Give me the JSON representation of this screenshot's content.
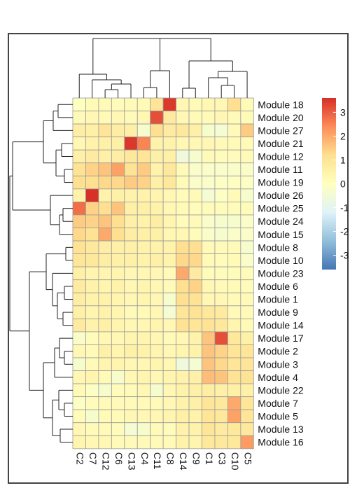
{
  "chart_data": {
    "type": "heatmap",
    "title": "",
    "xlabel": "",
    "ylabel": "",
    "columns": [
      "C2",
      "C7",
      "C12",
      "C6",
      "C13",
      "C4",
      "C11",
      "C8",
      "C14",
      "C9",
      "C1",
      "C3",
      "C10",
      "C5"
    ],
    "rows": [
      "Module 18",
      "Module 20",
      "Module 27",
      "Module 21",
      "Module 12",
      "Module 11",
      "Module 19",
      "Module 26",
      "Module 25",
      "Module 24",
      "Module 15",
      "Module 8",
      "Module 10",
      "Module 23",
      "Module 6",
      "Module 1",
      "Module 9",
      "Module 14",
      "Module 17",
      "Module 2",
      "Module 3",
      "Module 4",
      "Module 22",
      "Module 7",
      "Module 5",
      "Module 13",
      "Module 16"
    ],
    "values": [
      [
        0.0,
        0.2,
        0.2,
        0.1,
        0.2,
        0.2,
        1.0,
        3.5,
        0.3,
        0.2,
        0.3,
        0.3,
        1.2,
        0.2
      ],
      [
        0.2,
        0.3,
        0.2,
        0.3,
        0.2,
        0.3,
        3.2,
        0.8,
        0.3,
        0.2,
        0.2,
        0.3,
        0.2,
        0.2
      ],
      [
        0.7,
        0.6,
        1.0,
        0.7,
        0.6,
        -0.3,
        1.2,
        0.8,
        0.9,
        0.6,
        -0.3,
        -0.4,
        0.2,
        1.5
      ],
      [
        0.3,
        0.5,
        0.6,
        0.6,
        3.5,
        2.5,
        0.5,
        0.5,
        0.3,
        0.3,
        0.3,
        0.2,
        0.2,
        0.2
      ],
      [
        0.6,
        0.8,
        0.6,
        0.7,
        0.9,
        1.0,
        0.6,
        0.6,
        -0.6,
        -0.3,
        0.2,
        0.1,
        0.1,
        0.2
      ],
      [
        1.1,
        1.4,
        1.6,
        2.1,
        1.1,
        1.5,
        0.5,
        0.9,
        0.2,
        -0.2,
        -0.2,
        -0.2,
        -0.2,
        -0.2
      ],
      [
        1.2,
        1.2,
        1.3,
        1.3,
        1.5,
        1.4,
        0.6,
        0.9,
        0.2,
        -0.2,
        -0.2,
        -0.1,
        -0.1,
        -0.1
      ],
      [
        0.5,
        3.6,
        0.5,
        0.6,
        0.5,
        0.5,
        0.4,
        0.3,
        0.1,
        0.2,
        -0.4,
        -0.1,
        0.2,
        -0.3
      ],
      [
        2.8,
        1.4,
        1.2,
        1.6,
        0.6,
        0.6,
        0.5,
        0.3,
        0.2,
        0.1,
        0.1,
        0.1,
        0.1,
        0.1
      ],
      [
        1.5,
        1.4,
        1.6,
        1.2,
        0.6,
        0.5,
        0.7,
        0.4,
        0.1,
        0.2,
        -0.2,
        -0.3,
        -0.3,
        -0.2
      ],
      [
        1.3,
        1.1,
        2.0,
        1.2,
        0.7,
        0.6,
        0.6,
        0.3,
        0.3,
        0.1,
        -0.2,
        -0.3,
        -0.2,
        -0.2
      ],
      [
        1.1,
        0.9,
        0.7,
        0.6,
        0.6,
        0.5,
        0.5,
        0.5,
        1.2,
        1.2,
        0.2,
        0.2,
        0.2,
        -0.3
      ],
      [
        1.0,
        0.9,
        0.7,
        0.6,
        0.6,
        0.5,
        0.6,
        0.5,
        1.3,
        1.3,
        0.2,
        0.1,
        0.2,
        -0.2
      ],
      [
        0.6,
        0.4,
        0.4,
        0.4,
        0.3,
        0.3,
        0.3,
        0.2,
        2.0,
        0.8,
        0.1,
        0.1,
        0.1,
        0.1
      ],
      [
        0.8,
        0.5,
        0.4,
        0.5,
        0.3,
        0.4,
        0.3,
        0.2,
        1.2,
        1.4,
        0.3,
        0.2,
        0.2,
        0.1
      ],
      [
        0.7,
        0.5,
        0.5,
        0.4,
        0.3,
        0.4,
        0.3,
        -0.3,
        1.2,
        1.1,
        0.3,
        0.3,
        0.2,
        0.2
      ],
      [
        0.6,
        0.4,
        0.5,
        0.4,
        0.2,
        0.2,
        0.3,
        -0.4,
        1.0,
        1.1,
        0.9,
        0.8,
        0.2,
        0.2
      ],
      [
        0.8,
        0.5,
        0.6,
        0.4,
        0.3,
        0.3,
        0.4,
        0.3,
        1.1,
        1.0,
        1.1,
        0.9,
        0.4,
        0.2
      ],
      [
        -0.2,
        0.1,
        0.3,
        0.3,
        0.4,
        0.4,
        0.3,
        0.2,
        0.3,
        0.5,
        1.6,
        3.2,
        0.9,
        0.6
      ],
      [
        0.3,
        0.2,
        0.6,
        0.4,
        0.6,
        0.5,
        0.4,
        0.3,
        0.4,
        0.5,
        1.6,
        1.4,
        1.0,
        1.0
      ],
      [
        -0.3,
        0.2,
        0.4,
        0.4,
        0.3,
        0.3,
        0.4,
        0.3,
        -0.6,
        -0.4,
        1.6,
        1.3,
        1.0,
        1.0
      ],
      [
        0.3,
        0.4,
        0.2,
        -0.3,
        0.3,
        0.4,
        0.3,
        0.4,
        0.5,
        0.6,
        1.7,
        1.6,
        1.1,
        1.1
      ],
      [
        0.2,
        -0.1,
        -0.3,
        0.1,
        0.2,
        0.3,
        -0.3,
        0.3,
        0.5,
        0.6,
        0.7,
        0.6,
        0.6,
        0.6
      ],
      [
        -0.1,
        0.1,
        0.2,
        0.2,
        0.2,
        0.2,
        0.2,
        0.3,
        0.5,
        0.6,
        1.0,
        0.9,
        2.0,
        1.0
      ],
      [
        0.1,
        -0.3,
        0.2,
        0.2,
        0.3,
        0.3,
        0.3,
        0.4,
        0.6,
        0.5,
        1.0,
        0.9,
        2.1,
        1.0
      ],
      [
        0.3,
        0.2,
        0.2,
        0.1,
        -0.4,
        -0.3,
        0.2,
        0.1,
        0.5,
        0.5,
        1.0,
        0.8,
        0.9,
        0.9
      ],
      [
        0.4,
        0.3,
        0.3,
        0.2,
        0.2,
        0.2,
        0.2,
        0.2,
        0.5,
        0.4,
        0.9,
        0.9,
        0.9,
        2.2
      ]
    ],
    "color_scale": {
      "min": -3.6,
      "max": 3.6,
      "stops": [
        "#4575b4",
        "#91bfdb",
        "#e0f3f8",
        "#ffffbf",
        "#fee090",
        "#fc8d59",
        "#d73027"
      ],
      "ticks": [
        3,
        2,
        1,
        0,
        -1,
        -2,
        -3
      ],
      "tick_labels": [
        "3",
        "2",
        "1",
        "0",
        "-1",
        "-2",
        "-3"
      ]
    },
    "cell_border_color": "#9a9a9a",
    "dendrogram_color": "#222222",
    "legend_position": "right"
  }
}
